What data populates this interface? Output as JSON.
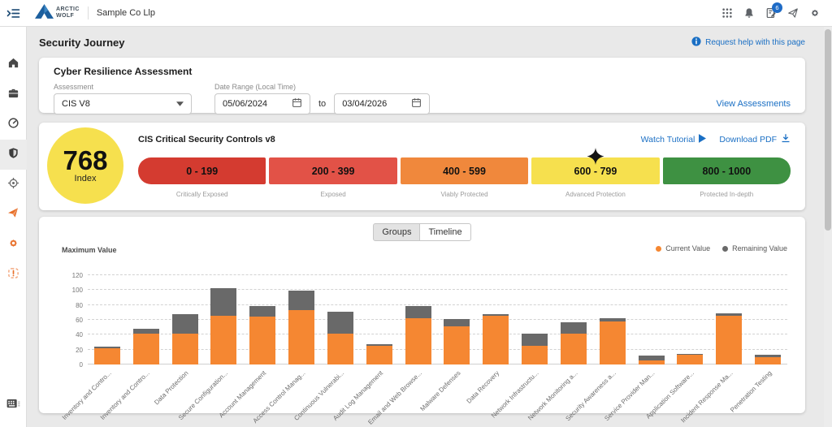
{
  "topbar": {
    "brand_line1": "ARCTIC",
    "brand_line2": "WOLF",
    "company": "Sample Co Llp",
    "toggle_icon": "menu-open-icon",
    "icons": [
      {
        "icon": "apps-grid-icon"
      },
      {
        "icon": "bell-icon"
      },
      {
        "icon": "tasks-icon",
        "badge": "6"
      },
      {
        "icon": "paper-plane-outline-icon"
      },
      {
        "icon": "gear-icon"
      }
    ]
  },
  "sidebar": {
    "items": [
      {
        "icon": "home-icon",
        "active": false
      },
      {
        "icon": "briefcase-icon",
        "active": false
      },
      {
        "icon": "gauge-icon",
        "active": false
      },
      {
        "icon": "shield-icon",
        "active": true
      },
      {
        "icon": "target-icon",
        "active": false
      },
      {
        "icon": "paper-plane-icon",
        "active": false
      },
      {
        "icon": "gear-orange-icon",
        "active": false
      },
      {
        "icon": "incident-icon",
        "active": false
      }
    ],
    "bottom_icon": "keyboard-icon"
  },
  "page": {
    "title": "Security Journey",
    "help_link": "Request help with this page"
  },
  "assessment_card": {
    "title": "Cyber Resilience Assessment",
    "assessment_label": "Assessment",
    "assessment_value": "CIS V8",
    "date_range_label": "Date Range (Local Time)",
    "date_from": "05/06/2024",
    "to_word": "to",
    "date_to": "03/04/2026",
    "view_link": "View Assessments"
  },
  "gauge_card": {
    "index_value": "768",
    "index_label": "Index",
    "index_color": "#f6e04e",
    "title": "CIS Critical Security Controls v8",
    "watch_tutorial": "Watch Tutorial",
    "download_pdf": "Download PDF",
    "bands": [
      {
        "range": "0 - 199",
        "caption": "Critically Exposed",
        "color": "#d43b30",
        "marker": false
      },
      {
        "range": "200 - 399",
        "caption": "Exposed",
        "color": "#e25247",
        "marker": false
      },
      {
        "range": "400 - 599",
        "caption": "Viably Protected",
        "color": "#f0883c",
        "marker": false
      },
      {
        "range": "600 - 799",
        "caption": "Advanced Protection",
        "color": "#f6e04e",
        "marker": true
      },
      {
        "range": "800 - 1000",
        "caption": "Protected In-depth",
        "color": "#3e9142",
        "marker": false
      }
    ]
  },
  "chart_card": {
    "tabs": [
      {
        "label": "Groups",
        "active": true
      },
      {
        "label": "Timeline",
        "active": false
      }
    ],
    "y_axis_title": "Maximum Value"
  },
  "chart_data": {
    "type": "bar",
    "stacked": true,
    "ylabel": "Maximum Value",
    "ylim": [
      0,
      120
    ],
    "yticks": [
      0,
      20,
      40,
      60,
      80,
      100,
      120
    ],
    "grid": "dashed-horizontal",
    "legend_position": "top-right",
    "categories": [
      "Inventory and Contro...",
      "Inventory and Contro...",
      "Data Protection",
      "Secure Configuration...",
      "Account Management",
      "Access Control Manag...",
      "Continuous Vulnerabi...",
      "Audit Log Management",
      "Email and Web Browse...",
      "Malware Defenses",
      "Data Recovery",
      "Network Infrastructu...",
      "Network Monitoring a...",
      "Security Awareness a...",
      "Service Provider Man...",
      "Application Software...",
      "Incident Response Ma...",
      "Penetration Testing"
    ],
    "series": [
      {
        "name": "Current Value",
        "color": "#f58732",
        "values": [
          22,
          42,
          42,
          66,
          64,
          73,
          41,
          25,
          62,
          51,
          66,
          25,
          41,
          58,
          5,
          13,
          66,
          10
        ]
      },
      {
        "name": "Remaining Value",
        "color": "#696969",
        "values": [
          2,
          6,
          26,
          37,
          15,
          26,
          30,
          2,
          17,
          10,
          2,
          17,
          16,
          4,
          7,
          1,
          3,
          3
        ]
      }
    ]
  }
}
